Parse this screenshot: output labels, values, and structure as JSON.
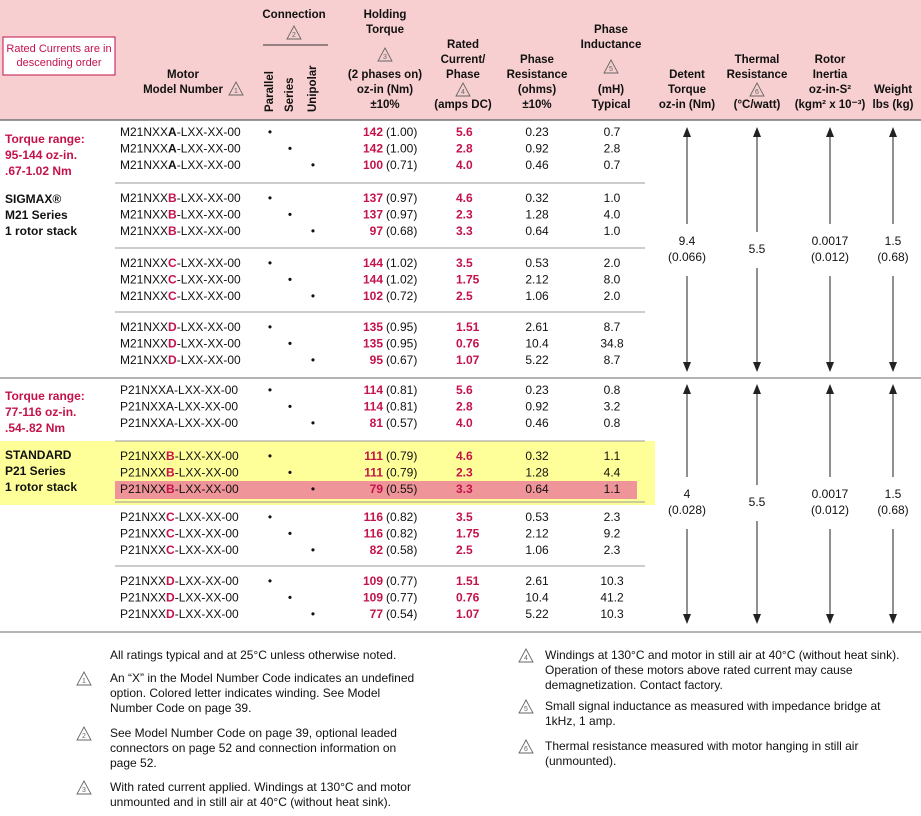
{
  "header": {
    "note": [
      "Rated Currents are in",
      "descending order"
    ],
    "model": {
      "lines": [
        "Motor",
        "Model Number"
      ],
      "marker": "1"
    },
    "connection": {
      "lines": [
        "Connection"
      ],
      "marker": "2",
      "sub": [
        "Parallel",
        "Series",
        "Unipolar"
      ]
    },
    "torque": {
      "lines": [
        "Holding",
        "Torque"
      ],
      "marker": "3",
      "lines2": [
        "(2 phases on)",
        "oz-in (Nm)",
        "±10%"
      ]
    },
    "current": {
      "lines": [
        "Rated",
        "Current/",
        "Phase"
      ],
      "marker": "4",
      "lines2": [
        "(amps DC)"
      ]
    },
    "resistance": {
      "lines": [
        "Phase",
        "Resistance",
        "(ohms)",
        "±10%"
      ]
    },
    "inductance": {
      "lines": [
        "Phase",
        "Inductance"
      ],
      "marker": "5",
      "lines2": [
        "(mH)",
        "Typical"
      ]
    },
    "detent": {
      "lines": [
        "Detent",
        "Torque",
        "oz-in (Nm)"
      ]
    },
    "thermal": {
      "lines": [
        "Thermal",
        "Resistance"
      ],
      "marker": "6",
      "lines2": [
        "(°C/watt)"
      ]
    },
    "inertia": {
      "lines": [
        "Rotor",
        "Inertia",
        "oz-in-S²",
        "(kgm² x 10⁻³)"
      ]
    },
    "weight": {
      "lines": [
        "Weight",
        "lbs (kg)"
      ]
    }
  },
  "sections": [
    {
      "range": [
        "Torque range:",
        "95-144 oz-in.",
        ".67-1.02 Nm"
      ],
      "series": [
        "SIGMAX®",
        "M21 Series",
        "1 rotor stack"
      ],
      "shared": {
        "detent": [
          "9.4",
          "(0.066)"
        ],
        "thermal": [
          "5.5"
        ],
        "inertia": [
          "0.0017",
          "(0.012)"
        ],
        "weight": [
          "1.5",
          "(0.68)"
        ]
      },
      "groups": [
        [
          {
            "model": [
              "M21NXX",
              "A",
              "-LXX-XX-00"
            ],
            "dots": [
              "•",
              null,
              null
            ],
            "torque": "142",
            "torque_nm": "(1.00)",
            "current": "5.6",
            "resistance": "0.23",
            "inductance": "0.7"
          },
          {
            "model": [
              "M21NXX",
              "A",
              "-LXX-XX-00"
            ],
            "dots": [
              null,
              "•",
              null
            ],
            "torque": "142",
            "torque_nm": "(1.00)",
            "current": "2.8",
            "resistance": "0.92",
            "inductance": "2.8"
          },
          {
            "model": [
              "M21NXX",
              "A",
              "-LXX-XX-00"
            ],
            "dots": [
              null,
              null,
              "•"
            ],
            "torque": "100",
            "torque_nm": "(0.71)",
            "current": "4.0",
            "resistance": "0.46",
            "inductance": "0.7"
          }
        ],
        [
          {
            "model": [
              "M21NXX",
              "B",
              "-LXX-XX-00"
            ],
            "dots": [
              "•",
              null,
              null
            ],
            "torque": "137",
            "torque_nm": "(0.97)",
            "current": "4.6",
            "resistance": "0.32",
            "inductance": "1.0"
          },
          {
            "model": [
              "M21NXX",
              "B",
              "-LXX-XX-00"
            ],
            "dots": [
              null,
              "•",
              null
            ],
            "torque": "137",
            "torque_nm": "(0.97)",
            "current": "2.3",
            "resistance": "1.28",
            "inductance": "4.0"
          },
          {
            "model": [
              "M21NXX",
              "B",
              "-LXX-XX-00"
            ],
            "dots": [
              null,
              null,
              "•"
            ],
            "torque": "97",
            "torque_nm": "(0.68)",
            "current": "3.3",
            "resistance": "0.64",
            "inductance": "1.0"
          }
        ],
        [
          {
            "model": [
              "M21NXX",
              "C",
              "-LXX-XX-00"
            ],
            "dots": [
              "•",
              null,
              null
            ],
            "torque": "144",
            "torque_nm": "(1.02)",
            "current": "3.5",
            "resistance": "0.53",
            "inductance": "2.0"
          },
          {
            "model": [
              "M21NXX",
              "C",
              "-LXX-XX-00"
            ],
            "dots": [
              null,
              "•",
              null
            ],
            "torque": "144",
            "torque_nm": "(1.02)",
            "current": "1.75",
            "resistance": "2.12",
            "inductance": "8.0"
          },
          {
            "model": [
              "M21NXX",
              "C",
              "-LXX-XX-00"
            ],
            "dots": [
              null,
              null,
              "•"
            ],
            "torque": "102",
            "torque_nm": "(0.72)",
            "current": "2.5",
            "resistance": "1.06",
            "inductance": "2.0"
          }
        ],
        [
          {
            "model": [
              "M21NXX",
              "D",
              "-LXX-XX-00"
            ],
            "dots": [
              "•",
              null,
              null
            ],
            "torque": "135",
            "torque_nm": "(0.95)",
            "current": "1.51",
            "resistance": "2.61",
            "inductance": "8.7"
          },
          {
            "model": [
              "M21NXX",
              "D",
              "-LXX-XX-00"
            ],
            "dots": [
              null,
              "•",
              null
            ],
            "torque": "135",
            "torque_nm": "(0.95)",
            "current": "0.76",
            "resistance": "10.4",
            "inductance": "34.8"
          },
          {
            "model": [
              "M21NXX",
              "D",
              "-LXX-XX-00"
            ],
            "dots": [
              null,
              null,
              "•"
            ],
            "torque": "95",
            "torque_nm": "(0.67)",
            "current": "1.07",
            "resistance": "5.22",
            "inductance": "8.7"
          }
        ]
      ]
    },
    {
      "range": [
        "Torque range:",
        "77-116 oz-in.",
        ".54-.82 Nm"
      ],
      "series": [
        "STANDARD",
        "P21 Series",
        "1 rotor stack"
      ],
      "shared": {
        "detent": [
          "4",
          "(0.028)"
        ],
        "thermal": [
          "5.5"
        ],
        "inertia": [
          "0.0017",
          "(0.012)"
        ],
        "weight": [
          "1.5",
          "(0.68)"
        ]
      },
      "groups": [
        [
          {
            "model": [
              "P21NXX",
              "A",
              "-LXX-XX-00"
            ],
            "dots": [
              "•",
              null,
              null
            ],
            "torque": "114",
            "torque_nm": "(0.81)",
            "current": "5.6",
            "resistance": "0.23",
            "inductance": "0.8"
          },
          {
            "model": [
              "P21NXX",
              "A",
              "-LXX-XX-00"
            ],
            "dots": [
              null,
              "•",
              null
            ],
            "torque": "114",
            "torque_nm": "(0.81)",
            "current": "2.8",
            "resistance": "0.92",
            "inductance": "3.2"
          },
          {
            "model": [
              "P21NXX",
              "A",
              "-LXX-XX-00"
            ],
            "dots": [
              null,
              null,
              "•"
            ],
            "torque": "81",
            "torque_nm": "(0.57)",
            "current": "4.0",
            "resistance": "0.46",
            "inductance": "0.8"
          }
        ],
        [
          {
            "model": [
              "P21NXX",
              "B",
              "-LXX-XX-00"
            ],
            "dots": [
              "•",
              null,
              null
            ],
            "torque": "111",
            "torque_nm": "(0.79)",
            "current": "4.6",
            "resistance": "0.32",
            "inductance": "1.1"
          },
          {
            "model": [
              "P21NXX",
              "B",
              "-LXX-XX-00"
            ],
            "dots": [
              null,
              "•",
              null
            ],
            "torque": "111",
            "torque_nm": "(0.79)",
            "current": "2.3",
            "resistance": "1.28",
            "inductance": "4.4"
          },
          {
            "model": [
              "P21NXX",
              "B",
              "-LXX-XX-00"
            ],
            "dots": [
              null,
              null,
              "•"
            ],
            "torque": "79",
            "torque_nm": "(0.55)",
            "current": "3.3",
            "resistance": "0.64",
            "inductance": "1.1"
          }
        ],
        [
          {
            "model": [
              "P21NXX",
              "C",
              "-LXX-XX-00"
            ],
            "dots": [
              "•",
              null,
              null
            ],
            "torque": "116",
            "torque_nm": "(0.82)",
            "current": "3.5",
            "resistance": "0.53",
            "inductance": "2.3"
          },
          {
            "model": [
              "P21NXX",
              "C",
              "-LXX-XX-00"
            ],
            "dots": [
              null,
              "•",
              null
            ],
            "torque": "116",
            "torque_nm": "(0.82)",
            "current": "1.75",
            "resistance": "2.12",
            "inductance": "9.2"
          },
          {
            "model": [
              "P21NXX",
              "C",
              "-LXX-XX-00"
            ],
            "dots": [
              null,
              null,
              "•"
            ],
            "torque": "82",
            "torque_nm": "(0.58)",
            "current": "2.5",
            "resistance": "1.06",
            "inductance": "2.3"
          }
        ],
        [
          {
            "model": [
              "P21NXX",
              "D",
              "-LXX-XX-00"
            ],
            "dots": [
              "•",
              null,
              null
            ],
            "torque": "109",
            "torque_nm": "(0.77)",
            "current": "1.51",
            "resistance": "2.61",
            "inductance": "10.3"
          },
          {
            "model": [
              "P21NXX",
              "D",
              "-LXX-XX-00"
            ],
            "dots": [
              null,
              "•",
              null
            ],
            "torque": "109",
            "torque_nm": "(0.77)",
            "current": "0.76",
            "resistance": "10.4",
            "inductance": "41.2"
          },
          {
            "model": [
              "P21NXX",
              "D",
              "-LXX-XX-00"
            ],
            "dots": [
              null,
              null,
              "•"
            ],
            "torque": "77",
            "torque_nm": "(0.54)",
            "current": "1.07",
            "resistance": "5.22",
            "inductance": "10.3"
          }
        ]
      ]
    }
  ],
  "footnotes": {
    "intro": "All ratings typical and at 25°C unless otherwise noted.",
    "notes": [
      {
        "marker": "1",
        "text": "An “X” in the Model Number Code indicates an undefined option. Colored letter indicates winding. See Model Number Code on page 39."
      },
      {
        "marker": "2",
        "text": "See Model Number Code on page 39, optional leaded connectors on page 52 and connection information on page 52."
      },
      {
        "marker": "3",
        "text": "With rated current applied. Windings at 130°C and motor unmounted and in still air at 40°C (without heat sink)."
      },
      {
        "marker": "4",
        "text": "Windings at 130°C and motor in still air at 40°C (without heat sink). Operation of these motors above rated current may cause demagnetization. Contact factory."
      },
      {
        "marker": "5",
        "text": "Small signal inductance as measured with impedance bridge at 1kHz, 1 amp."
      },
      {
        "marker": "6",
        "text": "Thermal resistance measured with motor hanging in still air (unmounted)."
      }
    ]
  }
}
